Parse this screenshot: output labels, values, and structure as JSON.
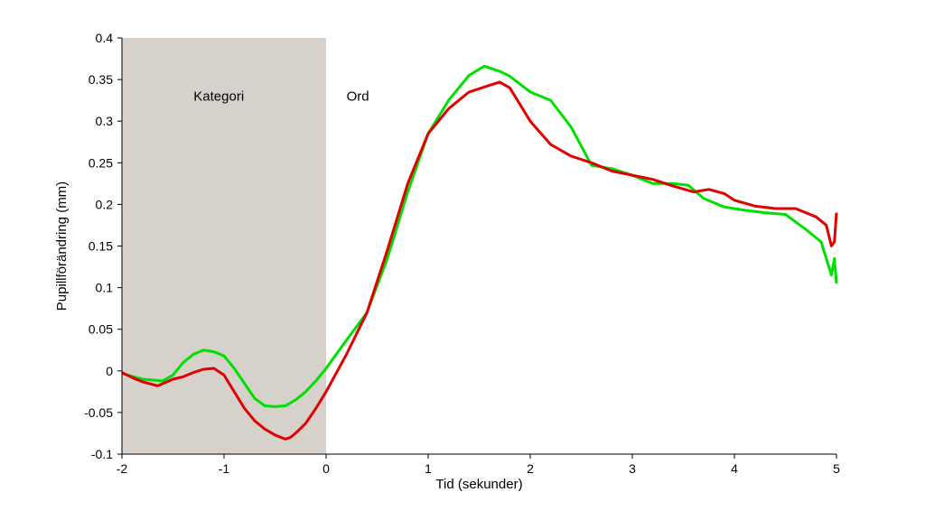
{
  "chart_data": {
    "type": "line",
    "xlabel": "Tid (sekunder)",
    "ylabel": "Pupillförändring (mm)",
    "xlim": [
      -2,
      5
    ],
    "ylim": [
      -0.1,
      0.4
    ],
    "x_ticks": [
      "-2",
      "-1",
      "0",
      "1",
      "2",
      "3",
      "4",
      "5"
    ],
    "y_ticks": [
      "-0.1",
      "-0.05",
      "0",
      "0.05",
      "0.1",
      "0.15",
      "0.2",
      "0.25",
      "0.3",
      "0.35",
      "0.4"
    ],
    "grid": false,
    "shaded_region": {
      "x": [
        -2,
        0
      ],
      "color": "#d6d2cb"
    },
    "annotations": [
      {
        "text": "Kategori",
        "x": -0.9,
        "y": 0.33
      },
      {
        "text": "Ord",
        "x": 0.2,
        "y": 0.33
      }
    ],
    "series": [
      {
        "color": "#00e000",
        "x": [
          -2.0,
          -1.8,
          -1.6,
          -1.5,
          -1.4,
          -1.3,
          -1.2,
          -1.1,
          -1.0,
          -0.9,
          -0.8,
          -0.7,
          -0.6,
          -0.5,
          -0.4,
          -0.3,
          -0.2,
          -0.1,
          0.0,
          0.2,
          0.4,
          0.6,
          0.8,
          1.0,
          1.2,
          1.4,
          1.55,
          1.7,
          1.8,
          2.0,
          2.2,
          2.4,
          2.6,
          2.8,
          3.0,
          3.2,
          3.4,
          3.55,
          3.7,
          3.9,
          4.1,
          4.3,
          4.5,
          4.7,
          4.85,
          4.9,
          4.95,
          4.98,
          5.0
        ],
        "y": [
          -0.003,
          -0.01,
          -0.012,
          -0.005,
          0.01,
          0.02,
          0.025,
          0.023,
          0.018,
          0.003,
          -0.015,
          -0.033,
          -0.042,
          -0.043,
          -0.042,
          -0.035,
          -0.025,
          -0.012,
          0.003,
          0.037,
          0.07,
          0.135,
          0.215,
          0.285,
          0.325,
          0.355,
          0.366,
          0.36,
          0.354,
          0.335,
          0.325,
          0.293,
          0.247,
          0.243,
          0.235,
          0.225,
          0.225,
          0.223,
          0.207,
          0.197,
          0.193,
          0.19,
          0.188,
          0.17,
          0.155,
          0.135,
          0.115,
          0.135,
          0.105
        ]
      },
      {
        "color": "#e00000",
        "x": [
          -2.0,
          -1.9,
          -1.8,
          -1.65,
          -1.5,
          -1.4,
          -1.3,
          -1.2,
          -1.1,
          -1.0,
          -0.9,
          -0.8,
          -0.7,
          -0.6,
          -0.5,
          -0.4,
          -0.35,
          -0.3,
          -0.2,
          -0.1,
          0.0,
          0.2,
          0.4,
          0.6,
          0.8,
          1.0,
          1.2,
          1.4,
          1.6,
          1.7,
          1.8,
          2.0,
          2.2,
          2.4,
          2.6,
          2.8,
          3.0,
          3.2,
          3.4,
          3.6,
          3.75,
          3.9,
          4.0,
          4.2,
          4.4,
          4.6,
          4.8,
          4.9,
          4.95,
          4.98,
          5.0
        ],
        "y": [
          -0.002,
          -0.008,
          -0.013,
          -0.018,
          -0.01,
          -0.007,
          -0.002,
          0.002,
          0.003,
          -0.005,
          -0.025,
          -0.045,
          -0.06,
          -0.07,
          -0.077,
          -0.082,
          -0.08,
          -0.075,
          -0.063,
          -0.045,
          -0.025,
          0.02,
          0.07,
          0.145,
          0.225,
          0.285,
          0.315,
          0.335,
          0.343,
          0.347,
          0.34,
          0.3,
          0.272,
          0.258,
          0.25,
          0.24,
          0.235,
          0.23,
          0.222,
          0.215,
          0.218,
          0.213,
          0.205,
          0.198,
          0.195,
          0.195,
          0.185,
          0.175,
          0.15,
          0.155,
          0.19
        ]
      }
    ]
  }
}
